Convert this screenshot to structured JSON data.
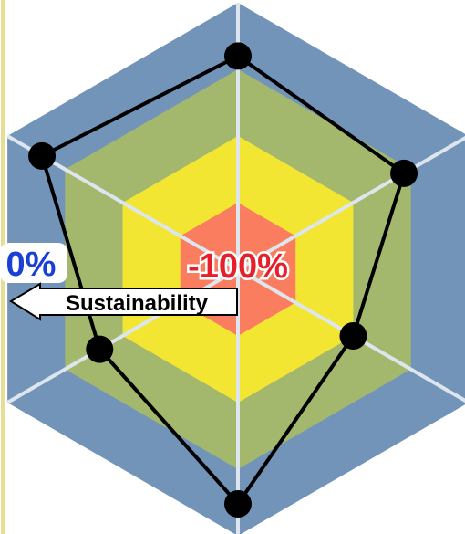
{
  "chart_data": {
    "type": "radar",
    "axes": [
      "",
      "",
      "",
      "",
      "",
      ""
    ],
    "rings": [
      "-100%",
      "",
      "",
      "0%"
    ],
    "ring_colors": [
      "#fa7d60",
      "#f2e633",
      "#a3b86d",
      "#7394b9"
    ],
    "spoke_color": "#dde6ee",
    "series": [
      {
        "values": [
          0.8,
          0.72,
          0.5,
          0.88,
          0.6,
          0.85
        ],
        "line_color": "#000000",
        "marker_color": "#000000"
      }
    ],
    "annotations": {
      "center_label": "-100%",
      "center_label_color": "#e5202a",
      "outer_label": "0%",
      "outer_label_color": "#1a3fd6",
      "arrow_label": "Sustainability"
    },
    "left_rule_color": "#e8dd94"
  }
}
